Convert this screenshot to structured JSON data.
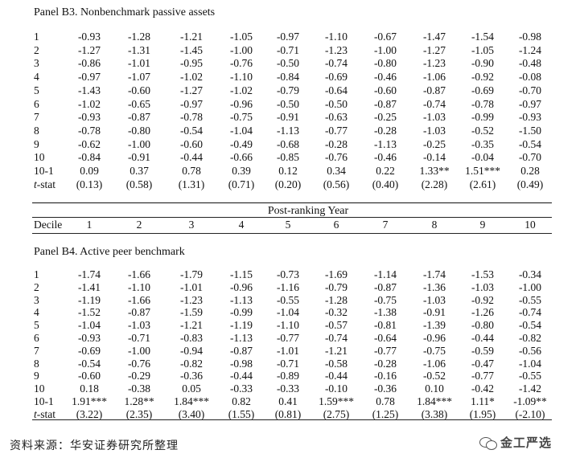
{
  "panelB3": {
    "title": "Panel B3. Nonbenchmark passive assets",
    "rows": [
      {
        "label": "1",
        "values": [
          "-0.93",
          "-1.28",
          "-1.21",
          "-1.05",
          "-0.97",
          "-1.10",
          "-0.67",
          "-1.47",
          "-1.54",
          "-0.98"
        ]
      },
      {
        "label": "2",
        "values": [
          "-1.27",
          "-1.31",
          "-1.45",
          "-1.00",
          "-0.71",
          "-1.23",
          "-1.00",
          "-1.27",
          "-1.05",
          "-1.24"
        ]
      },
      {
        "label": "3",
        "values": [
          "-0.86",
          "-1.01",
          "-0.95",
          "-0.76",
          "-0.50",
          "-0.74",
          "-0.80",
          "-1.23",
          "-0.90",
          "-0.48"
        ]
      },
      {
        "label": "4",
        "values": [
          "-0.97",
          "-1.07",
          "-1.02",
          "-1.10",
          "-0.84",
          "-0.69",
          "-0.46",
          "-1.06",
          "-0.92",
          "-0.08"
        ]
      },
      {
        "label": "5",
        "values": [
          "-1.43",
          "-0.60",
          "-1.27",
          "-1.02",
          "-0.79",
          "-0.64",
          "-0.60",
          "-0.87",
          "-0.69",
          "-0.70"
        ]
      },
      {
        "label": "6",
        "values": [
          "-1.02",
          "-0.65",
          "-0.97",
          "-0.96",
          "-0.50",
          "-0.50",
          "-0.87",
          "-0.74",
          "-0.78",
          "-0.97"
        ]
      },
      {
        "label": "7",
        "values": [
          "-0.93",
          "-0.87",
          "-0.78",
          "-0.75",
          "-0.91",
          "-0.63",
          "-0.25",
          "-1.03",
          "-0.99",
          "-0.93"
        ]
      },
      {
        "label": "8",
        "values": [
          "-0.78",
          "-0.80",
          "-0.54",
          "-1.04",
          "-1.13",
          "-0.77",
          "-0.28",
          "-1.03",
          "-0.52",
          "-1.50"
        ]
      },
      {
        "label": "9",
        "values": [
          "-0.62",
          "-1.00",
          "-0.60",
          "-0.49",
          "-0.68",
          "-0.28",
          "-1.13",
          "-0.25",
          "-0.35",
          "-0.54"
        ]
      },
      {
        "label": "10",
        "values": [
          "-0.84",
          "-0.91",
          "-0.44",
          "-0.66",
          "-0.85",
          "-0.76",
          "-0.46",
          "-0.14",
          "-0.04",
          "-0.70"
        ]
      },
      {
        "label": "10-1",
        "values": [
          "0.09",
          "0.37",
          "0.78",
          "0.39",
          "0.12",
          "0.34",
          "0.22",
          "1.33**",
          "1.51***",
          "0.28"
        ]
      },
      {
        "label": "t-stat",
        "italic_prefix": "t",
        "values": [
          "(0.13)",
          "(0.58)",
          "(1.31)",
          "(0.71)",
          "(0.20)",
          "(0.56)",
          "(0.40)",
          "(2.28)",
          "(2.61)",
          "(0.49)"
        ]
      }
    ]
  },
  "header": {
    "title": "Post-ranking Year",
    "decile_label": "Decile",
    "years": [
      "1",
      "2",
      "3",
      "4",
      "5",
      "6",
      "7",
      "8",
      "9",
      "10"
    ]
  },
  "panelB4": {
    "title": "Panel B4. Active peer benchmark",
    "rows": [
      {
        "label": "1",
        "values": [
          "-1.74",
          "-1.66",
          "-1.79",
          "-1.15",
          "-0.73",
          "-1.69",
          "-1.14",
          "-1.74",
          "-1.53",
          "-0.34"
        ]
      },
      {
        "label": "2",
        "values": [
          "-1.41",
          "-1.10",
          "-1.01",
          "-0.96",
          "-1.16",
          "-0.79",
          "-0.87",
          "-1.36",
          "-1.03",
          "-1.00"
        ]
      },
      {
        "label": "3",
        "values": [
          "-1.19",
          "-1.66",
          "-1.23",
          "-1.13",
          "-0.55",
          "-1.28",
          "-0.75",
          "-1.03",
          "-0.92",
          "-0.55"
        ]
      },
      {
        "label": "4",
        "values": [
          "-1.52",
          "-0.87",
          "-1.59",
          "-0.99",
          "-1.04",
          "-0.32",
          "-1.38",
          "-0.91",
          "-1.26",
          "-0.74"
        ]
      },
      {
        "label": "5",
        "values": [
          "-1.04",
          "-1.03",
          "-1.21",
          "-1.19",
          "-1.10",
          "-0.57",
          "-0.81",
          "-1.39",
          "-0.80",
          "-0.54"
        ]
      },
      {
        "label": "6",
        "values": [
          "-0.93",
          "-0.71",
          "-0.83",
          "-1.13",
          "-0.77",
          "-0.74",
          "-0.64",
          "-0.96",
          "-0.44",
          "-0.82"
        ]
      },
      {
        "label": "7",
        "values": [
          "-0.69",
          "-1.00",
          "-0.94",
          "-0.87",
          "-1.01",
          "-1.21",
          "-0.77",
          "-0.75",
          "-0.59",
          "-0.56"
        ]
      },
      {
        "label": "8",
        "values": [
          "-0.54",
          "-0.76",
          "-0.82",
          "-0.98",
          "-0.71",
          "-0.58",
          "-0.28",
          "-1.06",
          "-0.47",
          "-1.04"
        ]
      },
      {
        "label": "9",
        "values": [
          "-0.60",
          "-0.29",
          "-0.36",
          "-0.44",
          "-0.89",
          "-0.44",
          "-0.16",
          "-0.52",
          "-0.77",
          "-0.55"
        ]
      },
      {
        "label": "10",
        "values": [
          "0.18",
          "-0.38",
          "0.05",
          "-0.33",
          "-0.33",
          "-0.10",
          "-0.36",
          "0.10",
          "-0.42",
          "-1.42"
        ]
      },
      {
        "label": "10-1",
        "values": [
          "1.91***",
          "1.28**",
          "1.84***",
          "0.82",
          "0.41",
          "1.59***",
          "0.78",
          "1.84***",
          "1.11*",
          "-1.09**"
        ]
      },
      {
        "label": "t-stat",
        "italic_prefix": "t",
        "values": [
          "(3.22)",
          "(2.35)",
          "(3.40)",
          "(1.55)",
          "(0.81)",
          "(2.75)",
          "(1.25)",
          "(3.38)",
          "(1.95)",
          "(-2.10)"
        ]
      }
    ]
  },
  "footer": {
    "source": "资料来源：华安证券研究所整理",
    "logo_text": "金工严选",
    "logo_icon": "wechat-icon"
  }
}
